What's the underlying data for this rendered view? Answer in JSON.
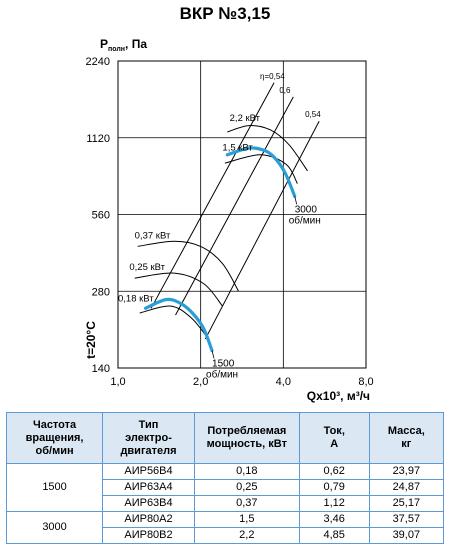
{
  "title": "ВКР №3,15",
  "chart_data": {
    "type": "line",
    "ylabel_main": "P",
    "ylabel_sub": "полн",
    "ylabel_unit": ", Па",
    "xlabel": "Qx10³, м³/ч",
    "temp_label": "t=20°C",
    "x_ticks": [
      "1,0",
      "2,0",
      "4,0",
      "8,0"
    ],
    "y_ticks": [
      "2240",
      "1120",
      "560",
      "280",
      "140"
    ],
    "x_scale": "log",
    "y_scale": "log",
    "xlim": [
      1.0,
      8.0
    ],
    "ylim": [
      140,
      2240
    ],
    "grid": true,
    "efficiency_lines": [
      {
        "label": "η=0,54",
        "points": [
          [
            1.32,
            240
          ],
          [
            3.7,
            1840
          ]
        ]
      },
      {
        "label": "0,6",
        "points": [
          [
            1.62,
            226
          ],
          [
            4.35,
            1620
          ]
        ]
      },
      {
        "label": "0,54",
        "points": [
          [
            2.08,
            182
          ],
          [
            5.4,
            1300
          ]
        ]
      }
    ],
    "power_labels": [
      {
        "label": "2,2 кВт",
        "x": 2.55,
        "y": 1300
      },
      {
        "label": "1,5 кВт",
        "x": 2.4,
        "y": 1000
      },
      {
        "label": "0,37 кВт",
        "x": 1.15,
        "y": 450
      },
      {
        "label": "0,25 кВт",
        "x": 1.1,
        "y": 340
      },
      {
        "label": "0,18 кВт",
        "x": 1.0,
        "y": 255
      }
    ],
    "series": [
      {
        "name": "3000 об/мин",
        "speed_label": "3000",
        "unit_label": "об/мин",
        "points": [
          [
            2.5,
            960
          ],
          [
            3.0,
            1020
          ],
          [
            3.4,
            1000
          ],
          [
            3.7,
            940
          ],
          [
            4.05,
            820
          ],
          [
            4.4,
            660
          ]
        ]
      },
      {
        "name": "1500 об/мин",
        "speed_label": "1500",
        "unit_label": "об/мин",
        "points": [
          [
            1.26,
            240
          ],
          [
            1.5,
            260
          ],
          [
            1.7,
            250
          ],
          [
            1.88,
            228
          ],
          [
            2.05,
            200
          ],
          [
            2.2,
            164
          ]
        ]
      }
    ],
    "operating_curves": [
      {
        "points": [
          [
            2.5,
            1180
          ],
          [
            3.0,
            1250
          ],
          [
            3.6,
            1200
          ],
          [
            4.2,
            1050
          ],
          [
            4.9,
            830
          ]
        ]
      },
      {
        "points": [
          [
            2.45,
            890
          ],
          [
            3.3,
            960
          ],
          [
            4.1,
            880
          ],
          [
            4.5,
            740
          ]
        ]
      },
      {
        "points": [
          [
            1.18,
            420
          ],
          [
            1.6,
            440
          ],
          [
            2.0,
            420
          ],
          [
            2.4,
            360
          ],
          [
            2.75,
            280
          ]
        ]
      },
      {
        "points": [
          [
            1.15,
            315
          ],
          [
            1.6,
            330
          ],
          [
            2.05,
            300
          ],
          [
            2.4,
            245
          ]
        ]
      },
      {
        "points": [
          [
            1.2,
            230
          ],
          [
            1.55,
            245
          ],
          [
            1.85,
            220
          ],
          [
            2.15,
            180
          ]
        ]
      }
    ],
    "colors": {
      "highlight": "#2a9fd6",
      "line": "#000000",
      "grid": "#000000"
    }
  },
  "table": {
    "headers": [
      "Частота вращения, об/мин",
      "Тип электро-двигателя",
      "Потребляемая мощность, кВт",
      "Ток, А",
      "Масса, кг"
    ],
    "header_lines": [
      [
        "Частота",
        "вращения,",
        "об/мин"
      ],
      [
        "Тип",
        "электро-",
        "двигателя"
      ],
      [
        "Потребляемая",
        "мощность, кВт"
      ],
      [
        "Ток,",
        "А"
      ],
      [
        "Масса,",
        "кг"
      ]
    ],
    "groups": [
      {
        "speed": "1500",
        "rows": [
          {
            "motor": "АИР56В4",
            "power": "0,18",
            "current": "0,62",
            "mass": "23,97"
          },
          {
            "motor": "АИР63А4",
            "power": "0,25",
            "current": "0,79",
            "mass": "24,87"
          },
          {
            "motor": "АИР63В4",
            "power": "0,37",
            "current": "1,12",
            "mass": "25,17"
          }
        ]
      },
      {
        "speed": "3000",
        "rows": [
          {
            "motor": "АИР80А2",
            "power": "1,5",
            "current": "3,46",
            "mass": "37,57"
          },
          {
            "motor": "АИР80В2",
            "power": "2,2",
            "current": "4,85",
            "mass": "39,07"
          }
        ]
      }
    ]
  }
}
